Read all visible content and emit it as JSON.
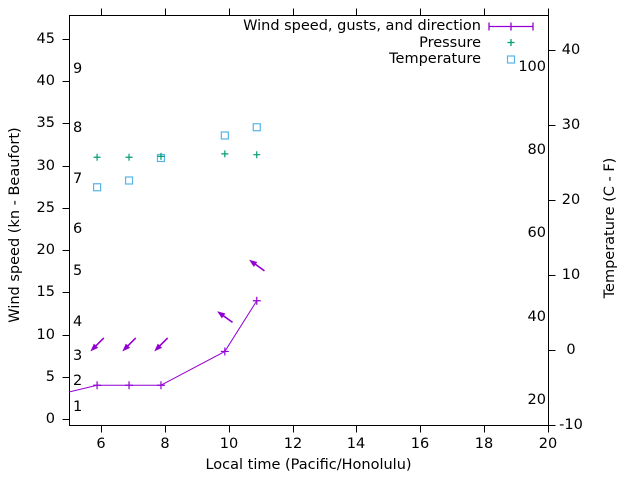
{
  "chart_data": {
    "type": "line",
    "title": "",
    "xlabel": "Local time (Pacific/Honolulu)",
    "ylabel_left": "Wind speed (kn - Beaufort)",
    "ylabel_right": "Temperature (C - F)",
    "x_range": [
      5,
      20
    ],
    "x_ticks": [
      6,
      8,
      10,
      12,
      14,
      16,
      18,
      20
    ],
    "wind_axis": {
      "ticks_kn": [
        0,
        5,
        10,
        15,
        20,
        25,
        30,
        35,
        40,
        45
      ],
      "range_kn": [
        -0.7,
        47.8
      ],
      "beaufort_labels": [
        {
          "bft": "1",
          "kn": 1
        },
        {
          "bft": "2",
          "kn": 4
        },
        {
          "bft": "3",
          "kn": 7
        },
        {
          "bft": "4",
          "kn": 11
        },
        {
          "bft": "5",
          "kn": 17
        },
        {
          "bft": "6",
          "kn": 22
        },
        {
          "bft": "7",
          "kn": 28
        },
        {
          "bft": "8",
          "kn": 34
        },
        {
          "bft": "9",
          "kn": 41
        }
      ]
    },
    "temp_axis": {
      "ticks_c": [
        40,
        30,
        20,
        10,
        0,
        -10
      ],
      "range_c": [
        -10,
        44.7
      ],
      "inside_labels_f": [
        100,
        80,
        60,
        40,
        20
      ]
    },
    "x": [
      5.88,
      6.88,
      7.88,
      9.88,
      10.88
    ],
    "series": [
      {
        "name": "Wind speed, gusts, and direction",
        "color": "#9400d3",
        "marker": "plus",
        "style": "line-with-points",
        "wind_kn": [
          4,
          4,
          4,
          8,
          14
        ],
        "line_clipped_entry": {
          "t": 5.0,
          "kn": 3.2
        },
        "gust_arrows": [
          {
            "t": 5.88,
            "kn": 8.8,
            "direction": "down-left"
          },
          {
            "t": 6.88,
            "kn": 8.8,
            "direction": "down-left"
          },
          {
            "t": 7.88,
            "kn": 8.8,
            "direction": "down-left"
          },
          {
            "t": 9.88,
            "kn": 12.1,
            "direction": "up-left"
          },
          {
            "t": 10.88,
            "kn": 18.2,
            "direction": "up-left"
          }
        ]
      },
      {
        "name": "Pressure",
        "color": "#009e73",
        "marker": "plus",
        "style": "points",
        "note": "pressure scale not drawn on chart",
        "y_plotted_on_wind_axis_kn": [
          31.0,
          31.0,
          31.1,
          31.4,
          31.3
        ]
      },
      {
        "name": "Temperature",
        "color": "#56b4e9",
        "marker": "open-square",
        "style": "points",
        "temp_c": [
          21.7,
          22.6,
          25.6,
          28.6,
          29.7
        ],
        "temp_f": [
          71.1,
          72.7,
          78.1,
          83.5,
          85.5
        ]
      }
    ],
    "legend": {
      "position": "top-right-inside",
      "entries": [
        {
          "label": "Wind speed, gusts, and direction",
          "sample": "errorbar-line"
        },
        {
          "label": "Pressure",
          "sample": "plus"
        },
        {
          "label": "Temperature",
          "sample": "open-square"
        }
      ]
    },
    "colors": {
      "axis": "#000000",
      "text": "#000000",
      "background": "#ffffff"
    }
  }
}
